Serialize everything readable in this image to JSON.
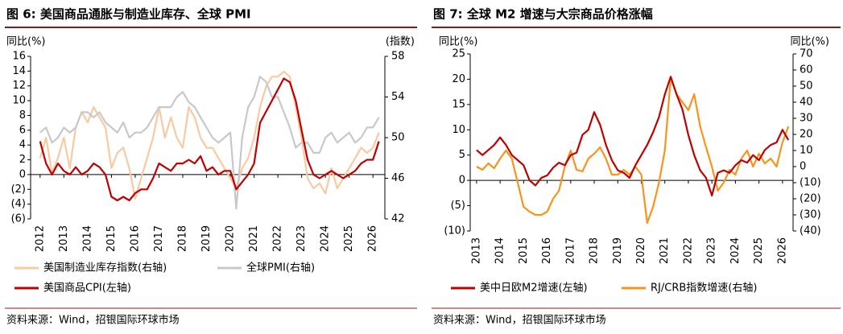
{
  "chart_data": [
    {
      "type": "line",
      "title": "图 6: 美国商品通胀与制造业库存、全球 PMI",
      "y_label": "同比(%)",
      "y2_label": "(指数)",
      "source": "资料来源：Wind，招银国际环球市场",
      "x": [
        2012,
        2012.25,
        2012.5,
        2012.75,
        2013,
        2013.25,
        2013.5,
        2013.75,
        2014,
        2014.25,
        2014.5,
        2014.75,
        2015,
        2015.25,
        2015.5,
        2015.75,
        2016,
        2016.25,
        2016.5,
        2016.75,
        2017,
        2017.25,
        2017.5,
        2017.75,
        2018,
        2018.25,
        2018.5,
        2018.75,
        2019,
        2019.25,
        2019.5,
        2019.75,
        2020,
        2020.25,
        2020.5,
        2020.75,
        2021,
        2021.25,
        2021.5,
        2021.75,
        2022,
        2022.25,
        2022.5,
        2022.75,
        2023,
        2023.25,
        2023.5,
        2023.75,
        2024,
        2024.25,
        2024.5,
        2024.75,
        2025,
        2025.25,
        2025.5,
        2025.75,
        2026,
        2026.25
      ],
      "xlim": [
        2011.6,
        2026.5
      ],
      "xticks": [
        2012,
        2013,
        2014,
        2015,
        2016,
        2017,
        2018,
        2019,
        2020,
        2021,
        2022,
        2023,
        2024,
        2025,
        2026
      ],
      "ylim": [
        -6,
        16
      ],
      "yticks": [
        {
          "value": -6,
          "label": "(6)"
        },
        {
          "value": -4,
          "label": "(4)"
        },
        {
          "value": -2,
          "label": "(2)"
        },
        0,
        2,
        4,
        6,
        8,
        10,
        12,
        14,
        16
      ],
      "y2lim": [
        42,
        58
      ],
      "y2ticks": [
        42,
        46,
        50,
        54,
        58
      ],
      "negative_tick_color": "#ff0000",
      "series": [
        {
          "name": "美国制造业库存指数(右轴)",
          "color": "#f9c9a0",
          "axis": "y2",
          "values": [
            48,
            50,
            46.5,
            48,
            50,
            47,
            51,
            52.5,
            51.5,
            53,
            52,
            51,
            47,
            48.5,
            49,
            47,
            44,
            46,
            48,
            50,
            53,
            50,
            52,
            50,
            49,
            53,
            52,
            50,
            49,
            49,
            48,
            47,
            46,
            45,
            47,
            48,
            50,
            53,
            55,
            56,
            56,
            56.5,
            56,
            53,
            50,
            46,
            45,
            45.5,
            44.5,
            47,
            45,
            46,
            47,
            48,
            49,
            48.5,
            49,
            50.5
          ]
        },
        {
          "name": "全球PMI(右轴)",
          "color": "#c8c8c8",
          "axis": "y2",
          "values": [
            50.5,
            51,
            49.5,
            50,
            51,
            50.5,
            51,
            52.5,
            52.5,
            52,
            52.5,
            51.5,
            51,
            50.5,
            51.5,
            50,
            50.5,
            50.5,
            51,
            52,
            53,
            53,
            53,
            54,
            54.5,
            53.5,
            53,
            52,
            51,
            50,
            49.5,
            50,
            50.5,
            43,
            50,
            53,
            54,
            56,
            55.5,
            54,
            54,
            52.5,
            51,
            49,
            49.5,
            49.5,
            48.5,
            48.5,
            50,
            50.5,
            49.5,
            50,
            50.5,
            49.5,
            50,
            51,
            51,
            52
          ]
        },
        {
          "name": "美国商品CPI(左轴)",
          "color": "#c00000",
          "values": [
            4.5,
            1.5,
            0,
            1.5,
            0.5,
            0,
            1,
            0,
            0.5,
            1.5,
            1,
            0,
            -3,
            -3.5,
            -3,
            -3.5,
            -2.5,
            -2,
            -2,
            -0.5,
            1.5,
            1,
            0.5,
            1.5,
            1.5,
            2,
            1.5,
            2.5,
            0.5,
            1,
            0,
            0.5,
            0.5,
            -2,
            -1,
            0,
            1.5,
            7,
            8.5,
            10,
            11.5,
            13,
            12.5,
            10,
            6,
            2,
            0,
            -0.5,
            0,
            0.5,
            0,
            -0.5,
            0,
            0.5,
            1.5,
            2,
            2,
            4.5
          ]
        }
      ]
    },
    {
      "type": "line",
      "title": "图 7: 全球 M2 增速与大宗商品价格涨幅",
      "y_label": "同比(%)",
      "y2_label": "同比(%)",
      "source": "资料来源：Wind，招银国际环球市场",
      "x": [
        2013,
        2013.25,
        2013.5,
        2013.75,
        2014,
        2014.25,
        2014.5,
        2014.75,
        2015,
        2015.25,
        2015.5,
        2015.75,
        2016,
        2016.25,
        2016.5,
        2016.75,
        2017,
        2017.25,
        2017.5,
        2017.75,
        2018,
        2018.25,
        2018.5,
        2018.75,
        2019,
        2019.25,
        2019.5,
        2019.75,
        2020,
        2020.25,
        2020.5,
        2020.75,
        2021,
        2021.25,
        2021.5,
        2021.75,
        2022,
        2022.25,
        2022.5,
        2022.75,
        2023,
        2023.25,
        2023.5,
        2023.75,
        2024,
        2024.25,
        2024.5,
        2024.75,
        2025,
        2025.25,
        2025.5,
        2025.75,
        2026,
        2026.25
      ],
      "xlim": [
        2012.73,
        2026.45
      ],
      "xticks": [
        2013,
        2014,
        2015,
        2016,
        2017,
        2018,
        2019,
        2020,
        2021,
        2022,
        2023,
        2024,
        2025,
        2026
      ],
      "ylim": [
        -10,
        25
      ],
      "yticks": [
        {
          "value": -10,
          "label": "(10)"
        },
        {
          "value": -5,
          "label": "(5)"
        },
        0,
        5,
        10,
        15,
        20,
        25
      ],
      "y2lim": [
        -40,
        70
      ],
      "y2ticks": [
        {
          "value": -40,
          "label": "(40)"
        },
        {
          "value": -30,
          "label": "(30)"
        },
        {
          "value": -20,
          "label": "(20)"
        },
        {
          "value": -10,
          "label": "(10)"
        },
        0,
        10,
        20,
        30,
        40,
        50,
        60,
        70
      ],
      "negative_tick_color": "#ff0000",
      "series": [
        {
          "name": "RJ/CRB指数增速(右轴)",
          "color": "#f7941d",
          "axis": "y2",
          "values": [
            0,
            -2,
            2,
            -1,
            5,
            10,
            5,
            -10,
            -25,
            -28,
            -30,
            -30,
            -28,
            -20,
            -15,
            0,
            10,
            -2,
            -3,
            5,
            8,
            12,
            5,
            -5,
            -5,
            -2,
            -5,
            0,
            -5,
            -35,
            -25,
            -10,
            10,
            55,
            45,
            40,
            35,
            45,
            25,
            12,
            0,
            -15,
            -10,
            -2,
            -5,
            5,
            10,
            0,
            8,
            2,
            5,
            0,
            15,
            25
          ]
        },
        {
          "name": "美中日欧M2增速(左轴)",
          "color": "#c00000",
          "values": [
            6,
            5,
            6,
            7,
            8.5,
            7,
            5,
            4,
            3,
            0,
            -1,
            0.5,
            1,
            2.5,
            3.5,
            3,
            5,
            5.5,
            9,
            10,
            13.5,
            11,
            7,
            4,
            2,
            1.5,
            0.5,
            3,
            5,
            7,
            9.5,
            12.5,
            17,
            20.5,
            17,
            14,
            9,
            5,
            2,
            0.5,
            -3,
            1.5,
            2,
            1.5,
            3,
            4,
            3.5,
            5,
            4,
            6,
            7,
            7.5,
            10,
            8
          ]
        }
      ]
    }
  ]
}
